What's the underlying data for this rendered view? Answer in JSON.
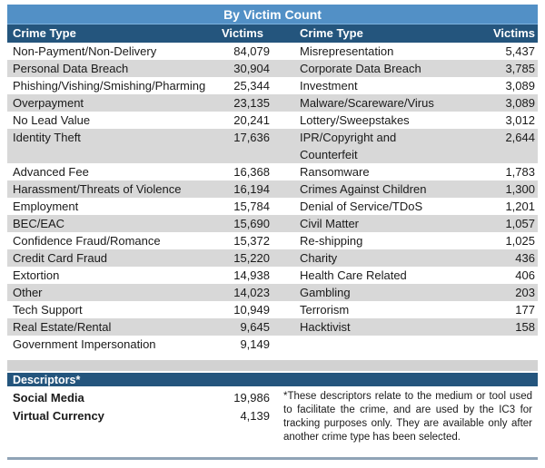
{
  "title": "By Victim Count",
  "columns": {
    "left": {
      "crime_type": "Crime Type",
      "victims": "Victims"
    },
    "right": {
      "crime_type": "Crime Type",
      "victims": "Victims"
    }
  },
  "table": {
    "rows": [
      {
        "left_type": "Non-Payment/Non-Delivery",
        "left_victims": "84,079",
        "right_type": "Misrepresentation",
        "right_victims": "5,437",
        "shaded": false,
        "tall": false
      },
      {
        "left_type": "Personal Data Breach",
        "left_victims": "30,904",
        "right_type": "Corporate Data Breach",
        "right_victims": "3,785",
        "shaded": true,
        "tall": false
      },
      {
        "left_type": "Phishing/Vishing/Smishing/Pharming",
        "left_victims": "25,344",
        "right_type": "Investment",
        "right_victims": "3,089",
        "shaded": false,
        "tall": false
      },
      {
        "left_type": "Overpayment",
        "left_victims": "23,135",
        "right_type": "Malware/Scareware/Virus",
        "right_victims": "3,089",
        "shaded": true,
        "tall": false
      },
      {
        "left_type": "No Lead Value",
        "left_victims": "20,241",
        "right_type": "Lottery/Sweepstakes",
        "right_victims": "3,012",
        "shaded": false,
        "tall": false
      },
      {
        "left_type": "Identity Theft",
        "left_victims": "17,636",
        "right_type": "IPR/Copyright and\nCounterfeit",
        "right_victims": "2,644",
        "shaded": true,
        "tall": true
      },
      {
        "left_type": "Advanced Fee",
        "left_victims": "16,368",
        "right_type": "Ransomware",
        "right_victims": "1,783",
        "shaded": false,
        "tall": false
      },
      {
        "left_type": "Harassment/Threats of Violence",
        "left_victims": "16,194",
        "right_type": "Crimes Against Children",
        "right_victims": "1,300",
        "shaded": true,
        "tall": false
      },
      {
        "left_type": "Employment",
        "left_victims": "15,784",
        "right_type": "Denial of Service/TDoS",
        "right_victims": "1,201",
        "shaded": false,
        "tall": false
      },
      {
        "left_type": "BEC/EAC",
        "left_victims": "15,690",
        "right_type": "Civil Matter",
        "right_victims": "1,057",
        "shaded": true,
        "tall": false
      },
      {
        "left_type": "Confidence Fraud/Romance",
        "left_victims": "15,372",
        "right_type": "Re-shipping",
        "right_victims": "1,025",
        "shaded": false,
        "tall": false
      },
      {
        "left_type": "Credit Card Fraud",
        "left_victims": "15,220",
        "right_type": "Charity",
        "right_victims": "436",
        "shaded": true,
        "tall": false
      },
      {
        "left_type": "Extortion",
        "left_victims": "14,938",
        "right_type": "Health Care Related",
        "right_victims": "406",
        "shaded": false,
        "tall": false
      },
      {
        "left_type": "Other",
        "left_victims": "14,023",
        "right_type": "Gambling",
        "right_victims": "203",
        "shaded": true,
        "tall": false
      },
      {
        "left_type": "Tech Support",
        "left_victims": "10,949",
        "right_type": "Terrorism",
        "right_victims": "177",
        "shaded": false,
        "tall": false
      },
      {
        "left_type": "Real Estate/Rental",
        "left_victims": "9,645",
        "right_type": "Hacktivist",
        "right_victims": "158",
        "shaded": true,
        "tall": false
      },
      {
        "left_type": "Government Impersonation",
        "left_victims": "9,149",
        "right_type": "",
        "right_victims": "",
        "shaded": false,
        "tall": false
      }
    ]
  },
  "descriptors": {
    "header": "Descriptors*",
    "rows": [
      {
        "label": "Social Media",
        "value": "19,986"
      },
      {
        "label": "Virtual Currency",
        "value": "4,139"
      }
    ],
    "footnote": "*These descriptors relate to the medium or tool used to facilitate the crime, and are used by the IC3 for tracking purposes only.  They are available only after another crime type has been selected."
  },
  "colors": {
    "title_band": "#5290c6",
    "header_band": "#24557d",
    "descriptors_band": "#24557d",
    "row_shade": "#d8d8d8",
    "separator_band": "#d2d2d2",
    "bottom_border": "#8fa3b6",
    "text": "#1a1a1a",
    "band_text": "#ffffff"
  }
}
